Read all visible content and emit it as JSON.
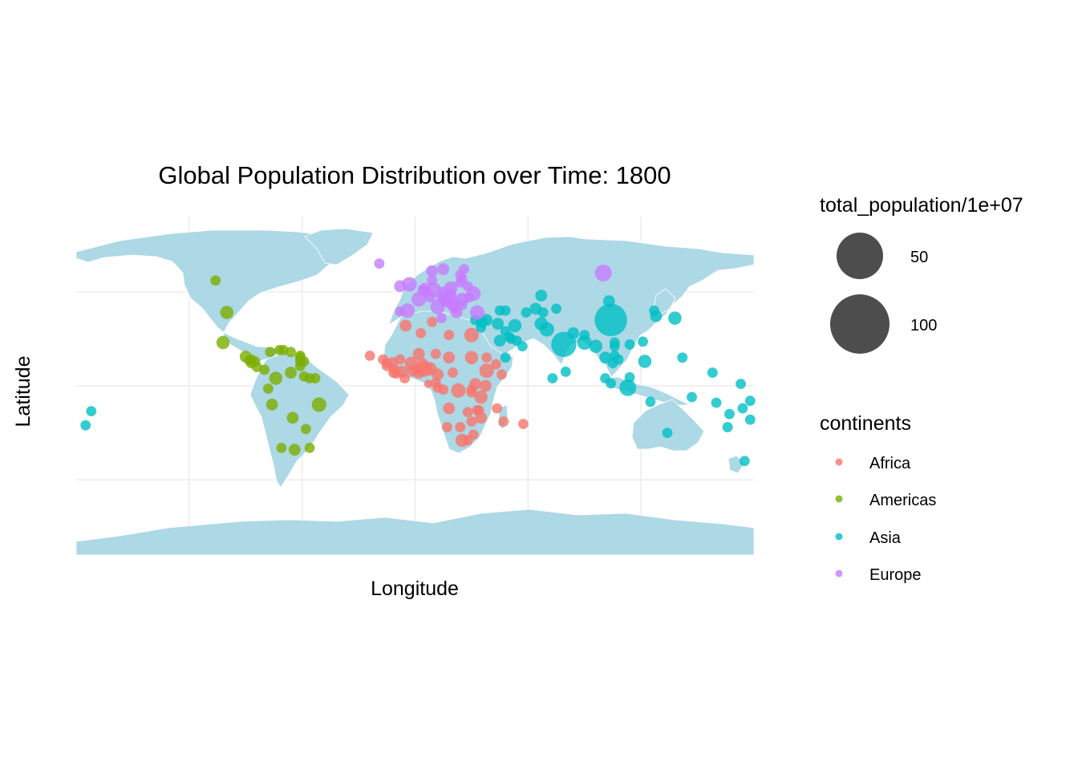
{
  "chart_data": {
    "type": "scatter",
    "subtype": "bubble-map",
    "title": "Global Population Distribution over Time: 1800",
    "xlabel": "Longitude",
    "ylabel": "Latitude",
    "xlim": [
      -180,
      180
    ],
    "ylim": [
      -90,
      90
    ],
    "map_projection": "equirectangular world map",
    "land_color": "#add8e6",
    "grid": true,
    "point_alpha": 0.8,
    "size_legend": {
      "title": "total_population/1e+07",
      "fill_color": "#4d4d4d",
      "entries": [
        {
          "label": "50",
          "value": 50
        },
        {
          "label": "100",
          "value": 100
        }
      ]
    },
    "color_legend": {
      "title": "continents",
      "entries": [
        {
          "label": "Africa",
          "color": "#f8766d"
        },
        {
          "label": "Americas",
          "color": "#7cae00"
        },
        {
          "label": "Asia",
          "color": "#00bfc4"
        },
        {
          "label": "Europe",
          "color": "#c77cff"
        }
      ]
    },
    "legend_position": "right",
    "series": [
      {
        "continent": "Africa",
        "points": [
          [
            -17,
            14,
            3
          ],
          [
            -15,
            12,
            3
          ],
          [
            -15,
            10.5,
            3
          ],
          [
            -12,
            12.5,
            3
          ],
          [
            -11,
            9,
            3
          ],
          [
            -10,
            6.5,
            3
          ],
          [
            -8,
            14,
            3
          ],
          [
            -7,
            7.5,
            4
          ],
          [
            -2,
            12,
            5
          ],
          [
            -1,
            8,
            4
          ],
          [
            1,
            9,
            3
          ],
          [
            2,
            7,
            4
          ],
          [
            2,
            17,
            4
          ],
          [
            5,
            9,
            7
          ],
          [
            8,
            9,
            5
          ],
          [
            3,
            28,
            3
          ],
          [
            -5,
            32,
            4
          ],
          [
            9,
            34,
            3
          ],
          [
            18,
            27,
            3
          ],
          [
            30,
            27,
            6
          ],
          [
            30,
            15,
            5
          ],
          [
            18,
            15,
            4
          ],
          [
            20,
            7,
            3
          ],
          [
            12,
            6,
            4
          ],
          [
            11,
            1.5,
            3
          ],
          [
            12,
            -1,
            3
          ],
          [
            15,
            -2,
            3
          ],
          [
            23,
            -2.5,
            6
          ],
          [
            30,
            -2,
            3
          ],
          [
            30,
            -3.5,
            3
          ],
          [
            32,
            1,
            4
          ],
          [
            38,
            8,
            6
          ],
          [
            38,
            15,
            3
          ],
          [
            43,
            11.5,
            3
          ],
          [
            46,
            6,
            3
          ],
          [
            37.5,
            0,
            4
          ],
          [
            35,
            -6,
            5
          ],
          [
            34,
            -13,
            3
          ],
          [
            33,
            -13,
            3
          ],
          [
            35,
            -17,
            4
          ],
          [
            28,
            -14,
            3
          ],
          [
            30,
            -19,
            3
          ],
          [
            18,
            -12,
            4
          ],
          [
            17,
            -22,
            3
          ],
          [
            24,
            -22,
            3
          ],
          [
            25,
            -29,
            5
          ],
          [
            28,
            -29,
            3
          ],
          [
            31,
            -26,
            3
          ],
          [
            47,
            -19,
            3
          ],
          [
            57.5,
            -20.3,
            3
          ],
          [
            43.5,
            -12,
            3
          ],
          [
            -24,
            16,
            3
          ],
          [
            7,
            1,
            2
          ],
          [
            -11.5,
            7,
            3
          ],
          [
            -5.5,
            4,
            3
          ],
          [
            4,
            12,
            3
          ],
          [
            11,
            17,
            3
          ]
        ]
      },
      {
        "continent": "Americas",
        "points": [
          [
            -106,
            56,
            3
          ],
          [
            -100,
            39,
            5
          ],
          [
            -102,
            23,
            5
          ],
          [
            -90,
            15.5,
            4
          ],
          [
            -87,
            14,
            3
          ],
          [
            -88,
            13.5,
            3
          ],
          [
            -85,
            13,
            3
          ],
          [
            -84,
            10,
            3
          ],
          [
            -80,
            8.5,
            3
          ],
          [
            -77,
            18,
            3
          ],
          [
            -72,
            19,
            3
          ],
          [
            -70,
            19,
            3
          ],
          [
            -66,
            18,
            3
          ],
          [
            -61,
            10.5,
            3
          ],
          [
            -61,
            13,
            3
          ],
          [
            -61,
            15,
            3
          ],
          [
            -61,
            16,
            3
          ],
          [
            -59,
            13,
            3
          ],
          [
            -74,
            4,
            5
          ],
          [
            -66,
            7,
            4
          ],
          [
            -59,
            5,
            3
          ],
          [
            -56,
            4,
            3
          ],
          [
            -53,
            4,
            3
          ],
          [
            -78,
            -1.5,
            3
          ],
          [
            -76,
            -10,
            4
          ],
          [
            -65,
            -17,
            4
          ],
          [
            -58,
            -23,
            3
          ],
          [
            -56,
            -33,
            3
          ],
          [
            -64,
            -34,
            4
          ],
          [
            -71,
            -33,
            3
          ],
          [
            -51,
            -10,
            6
          ],
          [
            -87,
            12,
            3
          ]
        ]
      },
      {
        "continent": "Asia",
        "points": [
          [
            104,
            35,
            30
          ],
          [
            79,
            22,
            18
          ],
          [
            103,
            45,
            4
          ],
          [
            138,
            36,
            5
          ],
          [
            128,
            37,
            4
          ],
          [
            127,
            40,
            3
          ],
          [
            35,
            31,
            3
          ],
          [
            36,
            34,
            3
          ],
          [
            38,
            35,
            4
          ],
          [
            44,
            33,
            4
          ],
          [
            53,
            32,
            5
          ],
          [
            45,
            40,
            3
          ],
          [
            48,
            40,
            3
          ],
          [
            59,
            39,
            3
          ],
          [
            64,
            41,
            4
          ],
          [
            68,
            39,
            3
          ],
          [
            75,
            41,
            3
          ],
          [
            67,
            48,
            4
          ],
          [
            67,
            33,
            5
          ],
          [
            70,
            30,
            6
          ],
          [
            84,
            28,
            4
          ],
          [
            90,
            27,
            3
          ],
          [
            90,
            23,
            6
          ],
          [
            96,
            21,
            5
          ],
          [
            101,
            15,
            4
          ],
          [
            105,
            12,
            3
          ],
          [
            106,
            16,
            3
          ],
          [
            108,
            14,
            3
          ],
          [
            106,
            21,
            3
          ],
          [
            106,
            23,
            3
          ],
          [
            114,
            22,
            3
          ],
          [
            121,
            23.5,
            3
          ],
          [
            122,
            13,
            5
          ],
          [
            114,
            4.5,
            3
          ],
          [
            101,
            4,
            3
          ],
          [
            104,
            1.3,
            3
          ],
          [
            113,
            -1,
            8
          ],
          [
            125,
            -8.5,
            3
          ],
          [
            80,
            7.5,
            3
          ],
          [
            73,
            4,
            3
          ],
          [
            45,
            24,
            4
          ],
          [
            51,
            25,
            3
          ],
          [
            54,
            24,
            3
          ],
          [
            57,
            21,
            3
          ],
          [
            48,
            15,
            3
          ],
          [
            50,
            26,
            3
          ],
          [
            48,
            29,
            3
          ],
          [
            35,
            33.5,
            3
          ],
          [
            178,
            -18,
            3
          ],
          [
            -172,
            -13.5,
            3
          ],
          [
            166,
            -22,
            3
          ],
          [
            160,
            -9,
            3
          ],
          [
            147,
            -6,
            3
          ],
          [
            134,
            -25,
            3
          ],
          [
            175,
            -40,
            3
          ],
          [
            174,
            -12,
            3
          ],
          [
            167,
            -15,
            3
          ],
          [
            178,
            -8,
            3
          ],
          [
            173,
            1,
            3
          ],
          [
            158,
            7,
            3
          ],
          [
            -175,
            -21,
            3
          ],
          [
            142,
            15,
            3
          ],
          [
            32,
            35,
            3
          ]
        ]
      },
      {
        "continent": "Europe",
        "points": [
          [
            100,
            60,
            8
          ],
          [
            -19,
            65,
            3
          ],
          [
            -8,
            53,
            4
          ],
          [
            -3,
            54,
            6
          ],
          [
            -4,
            40,
            6
          ],
          [
            -8,
            39.5,
            3
          ],
          [
            2,
            46,
            6
          ],
          [
            4,
            51,
            3
          ],
          [
            5,
            52,
            3
          ],
          [
            6,
            49.8,
            3
          ],
          [
            10,
            51,
            6
          ],
          [
            9,
            56,
            3
          ],
          [
            9,
            61,
            4
          ],
          [
            15,
            62,
            4
          ],
          [
            26,
            62,
            3
          ],
          [
            8,
            47,
            3
          ],
          [
            14,
            47.5,
            3
          ],
          [
            12,
            42,
            6
          ],
          [
            19,
            52,
            5
          ],
          [
            15,
            50,
            3
          ],
          [
            19,
            49,
            3
          ],
          [
            19,
            47,
            4
          ],
          [
            25,
            46,
            5
          ],
          [
            25,
            43,
            3
          ],
          [
            21,
            44,
            3
          ],
          [
            18,
            44,
            3
          ],
          [
            16,
            45,
            3
          ],
          [
            15,
            46,
            3
          ],
          [
            20,
            42,
            3
          ],
          [
            21.5,
            41.5,
            3
          ],
          [
            22,
            39,
            4
          ],
          [
            28,
            53,
            3
          ],
          [
            31,
            49,
            6
          ],
          [
            25,
            57,
            3
          ],
          [
            24,
            55,
            3
          ],
          [
            24,
            59,
            3
          ],
          [
            14,
            36,
            3
          ],
          [
            33,
            39,
            6
          ],
          [
            28.5,
            47,
            3
          ]
        ]
      }
    ]
  }
}
